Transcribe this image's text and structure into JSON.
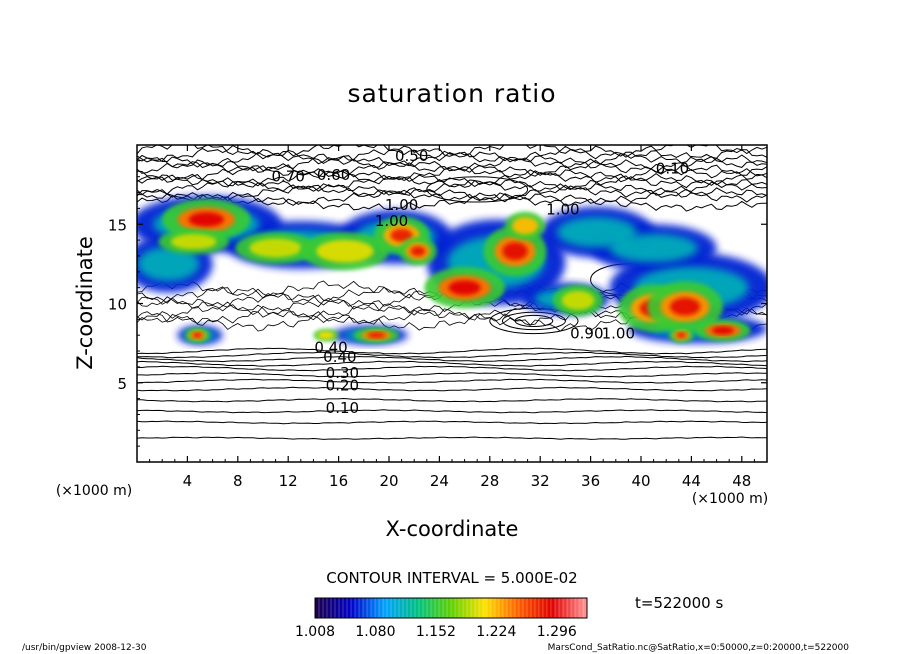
{
  "chart_data": {
    "type": "heatmap",
    "title": "saturation ratio",
    "xlabel": "X-coordinate",
    "ylabel": "Z-coordinate",
    "x_unit": "(×1000 m)",
    "z_unit": "(×1000 m)",
    "xlim": [
      0,
      50
    ],
    "ylim": [
      0,
      20
    ],
    "x_ticks": [
      4,
      8,
      12,
      16,
      20,
      24,
      28,
      32,
      36,
      40,
      44,
      48
    ],
    "y_ticks": [
      5,
      10,
      15
    ],
    "contour_interval_text": "CONTOUR INTERVAL = 5.000E-02",
    "time_text": "t=522000 s",
    "colorbar": {
      "range": [
        1.008,
        1.332
      ],
      "tick_labels": [
        "1.008",
        "1.080",
        "1.152",
        "1.224",
        "1.296"
      ],
      "colors": [
        "#1a0050",
        "#0000c8",
        "#00a0ff",
        "#00c080",
        "#60d000",
        "#ffe000",
        "#ff6000",
        "#e00000",
        "#ff9090"
      ]
    },
    "contour_labels": [
      {
        "text": "0.10",
        "x": 16.3,
        "z": 3.1
      },
      {
        "text": "0.20",
        "x": 16.3,
        "z": 4.5
      },
      {
        "text": "0.30",
        "x": 16.3,
        "z": 5.3
      },
      {
        "text": "0.40",
        "x": 16.1,
        "z": 6.3
      },
      {
        "text": "0.40",
        "x": 15.4,
        "z": 6.9
      },
      {
        "text": "0.70",
        "x": 12.0,
        "z": 17.7
      },
      {
        "text": "0.60",
        "x": 15.6,
        "z": 17.8
      },
      {
        "text": "0.10",
        "x": 42.5,
        "z": 18.2
      },
      {
        "text": "0.50",
        "x": 21.8,
        "z": 19.0
      },
      {
        "text": "0.90",
        "x": 35.7,
        "z": 7.8
      },
      {
        "text": "1.00",
        "x": 38.2,
        "z": 7.8
      },
      {
        "text": "1.00",
        "x": 33.8,
        "z": 15.6
      },
      {
        "text": "1.00",
        "x": 21.0,
        "z": 15.9
      },
      {
        "text": "1.00",
        "x": 20.2,
        "z": 14.9
      }
    ],
    "high_regions": [
      {
        "x": 5.5,
        "z": 15.3,
        "rx": 3.5,
        "rz": 1.3,
        "level": 0.95
      },
      {
        "x": 4.5,
        "z": 13.9,
        "rx": 2.8,
        "rz": 0.8,
        "level": 0.45
      },
      {
        "x": 11.0,
        "z": 13.5,
        "rx": 3.2,
        "rz": 1.0,
        "level": 0.45
      },
      {
        "x": 16.5,
        "z": 13.3,
        "rx": 3.5,
        "rz": 1.2,
        "level": 0.5
      },
      {
        "x": 21.0,
        "z": 14.3,
        "rx": 2.2,
        "rz": 1.2,
        "level": 0.75
      },
      {
        "x": 22.3,
        "z": 13.3,
        "rx": 1.5,
        "rz": 0.9,
        "level": 0.8
      },
      {
        "x": 26.0,
        "z": 11.0,
        "rx": 3.2,
        "rz": 1.3,
        "level": 0.95
      },
      {
        "x": 30.0,
        "z": 13.3,
        "rx": 2.5,
        "rz": 1.6,
        "level": 0.9
      },
      {
        "x": 30.8,
        "z": 14.9,
        "rx": 1.6,
        "rz": 0.9,
        "level": 0.7
      },
      {
        "x": 35.0,
        "z": 10.2,
        "rx": 2.0,
        "rz": 1.0,
        "level": 0.45
      },
      {
        "x": 41.0,
        "z": 9.7,
        "rx": 2.8,
        "rz": 1.5,
        "level": 0.8
      },
      {
        "x": 43.5,
        "z": 9.8,
        "rx": 3.0,
        "rz": 1.6,
        "level": 0.85
      },
      {
        "x": 46.5,
        "z": 8.3,
        "rx": 2.2,
        "rz": 0.7,
        "level": 0.95
      },
      {
        "x": 43.2,
        "z": 8.0,
        "rx": 1.0,
        "rz": 0.5,
        "level": 0.8
      },
      {
        "x": 4.8,
        "z": 8.0,
        "rx": 1.0,
        "rz": 0.5,
        "level": 0.8
      },
      {
        "x": 19.0,
        "z": 8.0,
        "rx": 1.8,
        "rz": 0.5,
        "level": 0.85
      },
      {
        "x": 15.0,
        "z": 8.0,
        "rx": 1.0,
        "rz": 0.4,
        "level": 0.6
      }
    ],
    "cloud_regions": [
      {
        "x": 5.5,
        "z": 15.0,
        "rx": 6.0,
        "rz": 1.8
      },
      {
        "x": 13.0,
        "z": 13.7,
        "rx": 6.0,
        "rz": 1.5
      },
      {
        "x": 20.5,
        "z": 14.2,
        "rx": 4.5,
        "rz": 1.7
      },
      {
        "x": 2.5,
        "z": 12.5,
        "rx": 3.5,
        "rz": 1.8
      },
      {
        "x": 28.5,
        "z": 12.6,
        "rx": 5.5,
        "rz": 2.7
      },
      {
        "x": 36.5,
        "z": 14.5,
        "rx": 4.5,
        "rz": 1.6
      },
      {
        "x": 44.0,
        "z": 11.0,
        "rx": 6.5,
        "rz": 2.2
      },
      {
        "x": 41.0,
        "z": 13.5,
        "rx": 5.0,
        "rz": 1.5
      },
      {
        "x": 34.0,
        "z": 10.3,
        "rx": 3.5,
        "rz": 1.0
      },
      {
        "x": 44.5,
        "z": 8.4,
        "rx": 5.5,
        "rz": 0.9
      },
      {
        "x": 5.0,
        "z": 8.0,
        "rx": 1.8,
        "rz": 0.6
      },
      {
        "x": 18.5,
        "z": 8.0,
        "rx": 3.0,
        "rz": 0.6
      }
    ],
    "footer_left": "/usr/bin/gpview   2008-12-30",
    "footer_right": "MarsCond_SatRatio.nc@SatRatio,x=0:50000,z=0:20000,t=522000"
  }
}
